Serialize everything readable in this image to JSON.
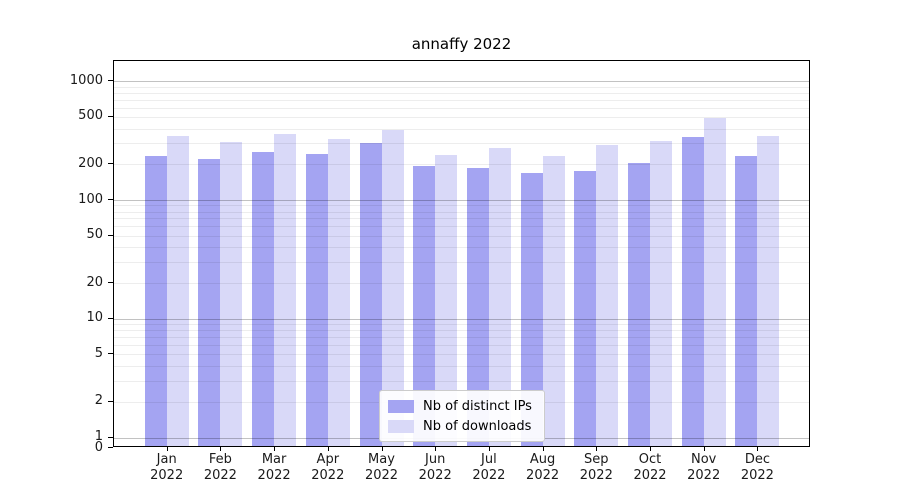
{
  "chart_data": {
    "type": "bar",
    "title": "annaffy 2022",
    "categories": [
      "Jan 2022",
      "Feb 2022",
      "Mar 2022",
      "Apr 2022",
      "May 2022",
      "Jun 2022",
      "Jul 2022",
      "Aug 2022",
      "Sep 2022",
      "Oct 2022",
      "Nov 2022",
      "Dec 2022"
    ],
    "series": [
      {
        "name": "Nb of distinct IPs",
        "color": "#a4a4f2",
        "values": [
          228,
          215,
          245,
          235,
          290,
          186,
          180,
          162,
          168,
          196,
          325,
          228
        ]
      },
      {
        "name": "Nb of downloads",
        "color": "#d9d9f8",
        "values": [
          330,
          295,
          345,
          315,
          375,
          230,
          265,
          225,
          280,
          300,
          470,
          335
        ]
      }
    ],
    "yscale": "symlog",
    "yticks": [
      1000,
      500,
      200,
      100,
      50,
      20,
      10,
      5,
      2,
      1,
      0
    ],
    "ylim": [
      0,
      1480
    ],
    "grid": "major-and-minor",
    "legend_position": "lower center"
  }
}
